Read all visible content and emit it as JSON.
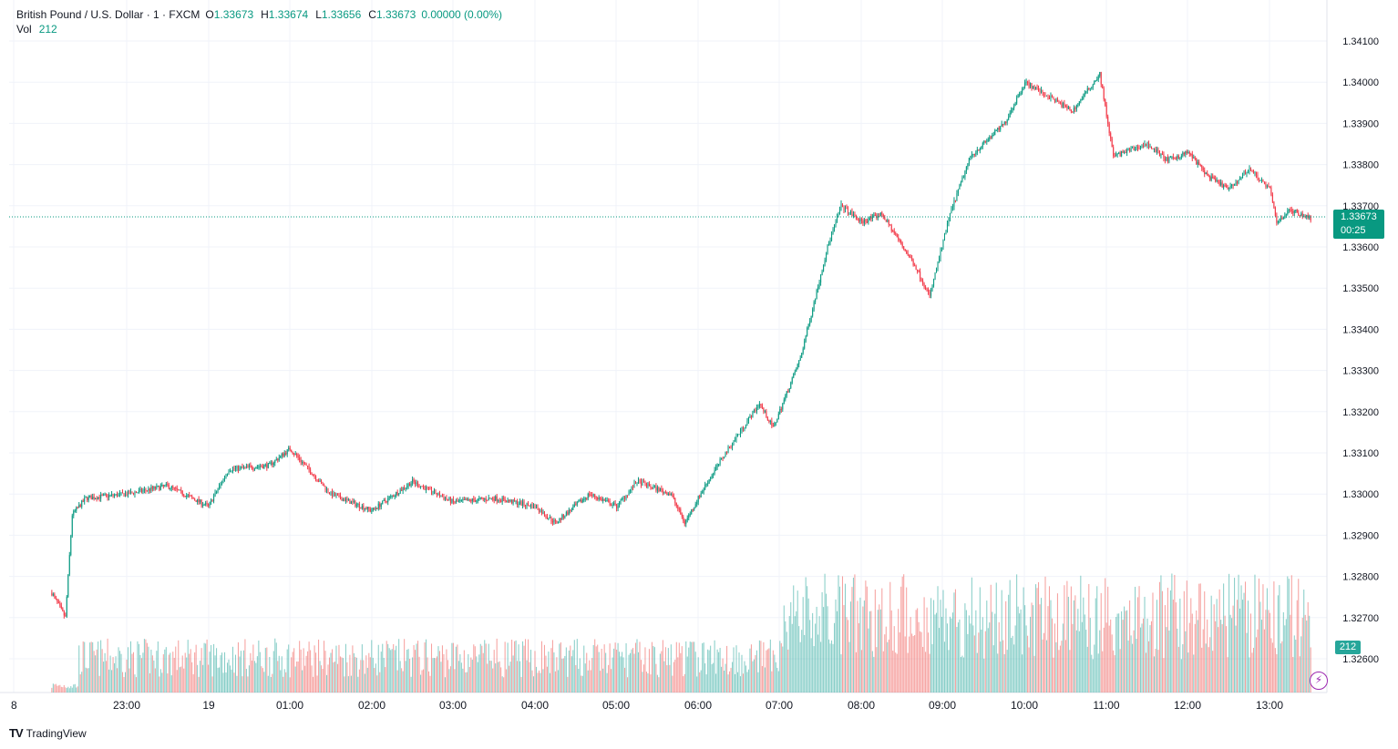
{
  "header": {
    "symbol": "British Pound / U.S. Dollar · 1 · FXCM",
    "o_label": "O",
    "o_value": "1.33673",
    "h_label": "H",
    "h_value": "1.33674",
    "l_label": "L",
    "l_value": "1.33656",
    "c_label": "C",
    "c_value": "1.33673",
    "change": "0.00000 (0.00%)",
    "vol_label": "Vol",
    "vol_value": "212"
  },
  "price_tag": {
    "price": "1.33673",
    "countdown": "00:25"
  },
  "volume_tag": "212",
  "brand": {
    "name": "TradingView",
    "logo": "TV"
  },
  "colors": {
    "up": "#089981",
    "down": "#f23645",
    "vol_up": "#26a69a",
    "vol_down": "#ef5350",
    "grid": "#f0f3fa",
    "axis_text": "#131722",
    "alert": "#9c27b0"
  },
  "chart_data": {
    "type": "candlestick",
    "title": "British Pound / U.S. Dollar · 1 · FXCM",
    "interval_minutes": 1,
    "ylim": [
      1.3254,
      1.3413
    ],
    "y_ticks": [
      "1.34100",
      "1.34000",
      "1.33900",
      "1.33800",
      "1.33700",
      "1.33600",
      "1.33500",
      "1.33400",
      "1.33300",
      "1.33200",
      "1.33100",
      "1.33000",
      "1.32900",
      "1.32800",
      "1.32700",
      "1.32600"
    ],
    "x_ticks": [
      "8",
      "23:00",
      "19",
      "01:00",
      "02:00",
      "03:00",
      "04:00",
      "05:00",
      "06:00",
      "07:00",
      "08:00",
      "09:00",
      "10:00",
      "11:00",
      "12:00",
      "13:00"
    ],
    "current_price": 1.33673,
    "price_path": [
      {
        "t": "22:05",
        "p": 1.3276
      },
      {
        "t": "22:15",
        "p": 1.327
      },
      {
        "t": "22:20",
        "p": 1.3295
      },
      {
        "t": "22:30",
        "p": 1.3299
      },
      {
        "t": "23:00",
        "p": 1.33
      },
      {
        "t": "23:30",
        "p": 1.3302
      },
      {
        "t": "00:00",
        "p": 1.3297
      },
      {
        "t": "00:15",
        "p": 1.3306
      },
      {
        "t": "00:45",
        "p": 1.3307
      },
      {
        "t": "01:00",
        "p": 1.3311
      },
      {
        "t": "01:30",
        "p": 1.33
      },
      {
        "t": "02:00",
        "p": 1.3296
      },
      {
        "t": "02:30",
        "p": 1.3303
      },
      {
        "t": "03:00",
        "p": 1.3298
      },
      {
        "t": "03:30",
        "p": 1.3299
      },
      {
        "t": "04:00",
        "p": 1.3297
      },
      {
        "t": "04:15",
        "p": 1.3293
      },
      {
        "t": "04:40",
        "p": 1.33
      },
      {
        "t": "05:00",
        "p": 1.3297
      },
      {
        "t": "05:15",
        "p": 1.3303
      },
      {
        "t": "05:40",
        "p": 1.33
      },
      {
        "t": "05:50",
        "p": 1.3293
      },
      {
        "t": "06:05",
        "p": 1.3302
      },
      {
        "t": "06:20",
        "p": 1.331
      },
      {
        "t": "06:45",
        "p": 1.3322
      },
      {
        "t": "06:55",
        "p": 1.3316
      },
      {
        "t": "07:15",
        "p": 1.3333
      },
      {
        "t": "07:35",
        "p": 1.336
      },
      {
        "t": "07:45",
        "p": 1.337
      },
      {
        "t": "08:00",
        "p": 1.3366
      },
      {
        "t": "08:15",
        "p": 1.3368
      },
      {
        "t": "08:40",
        "p": 1.3355
      },
      {
        "t": "08:50",
        "p": 1.3348
      },
      {
        "t": "09:05",
        "p": 1.3368
      },
      {
        "t": "09:20",
        "p": 1.3382
      },
      {
        "t": "09:45",
        "p": 1.339
      },
      {
        "t": "10:00",
        "p": 1.34
      },
      {
        "t": "10:20",
        "p": 1.3396
      },
      {
        "t": "10:35",
        "p": 1.3393
      },
      {
        "t": "10:55",
        "p": 1.3402
      },
      {
        "t": "11:05",
        "p": 1.3382
      },
      {
        "t": "11:30",
        "p": 1.3385
      },
      {
        "t": "11:45",
        "p": 1.3381
      },
      {
        "t": "12:00",
        "p": 1.3383
      },
      {
        "t": "12:15",
        "p": 1.3377
      },
      {
        "t": "12:30",
        "p": 1.3374
      },
      {
        "t": "12:45",
        "p": 1.3379
      },
      {
        "t": "13:00",
        "p": 1.3374
      },
      {
        "t": "13:05",
        "p": 1.3366
      },
      {
        "t": "13:15",
        "p": 1.3369
      },
      {
        "t": "13:30",
        "p": 1.3367
      }
    ],
    "volume_range": [
      0,
      212
    ]
  }
}
